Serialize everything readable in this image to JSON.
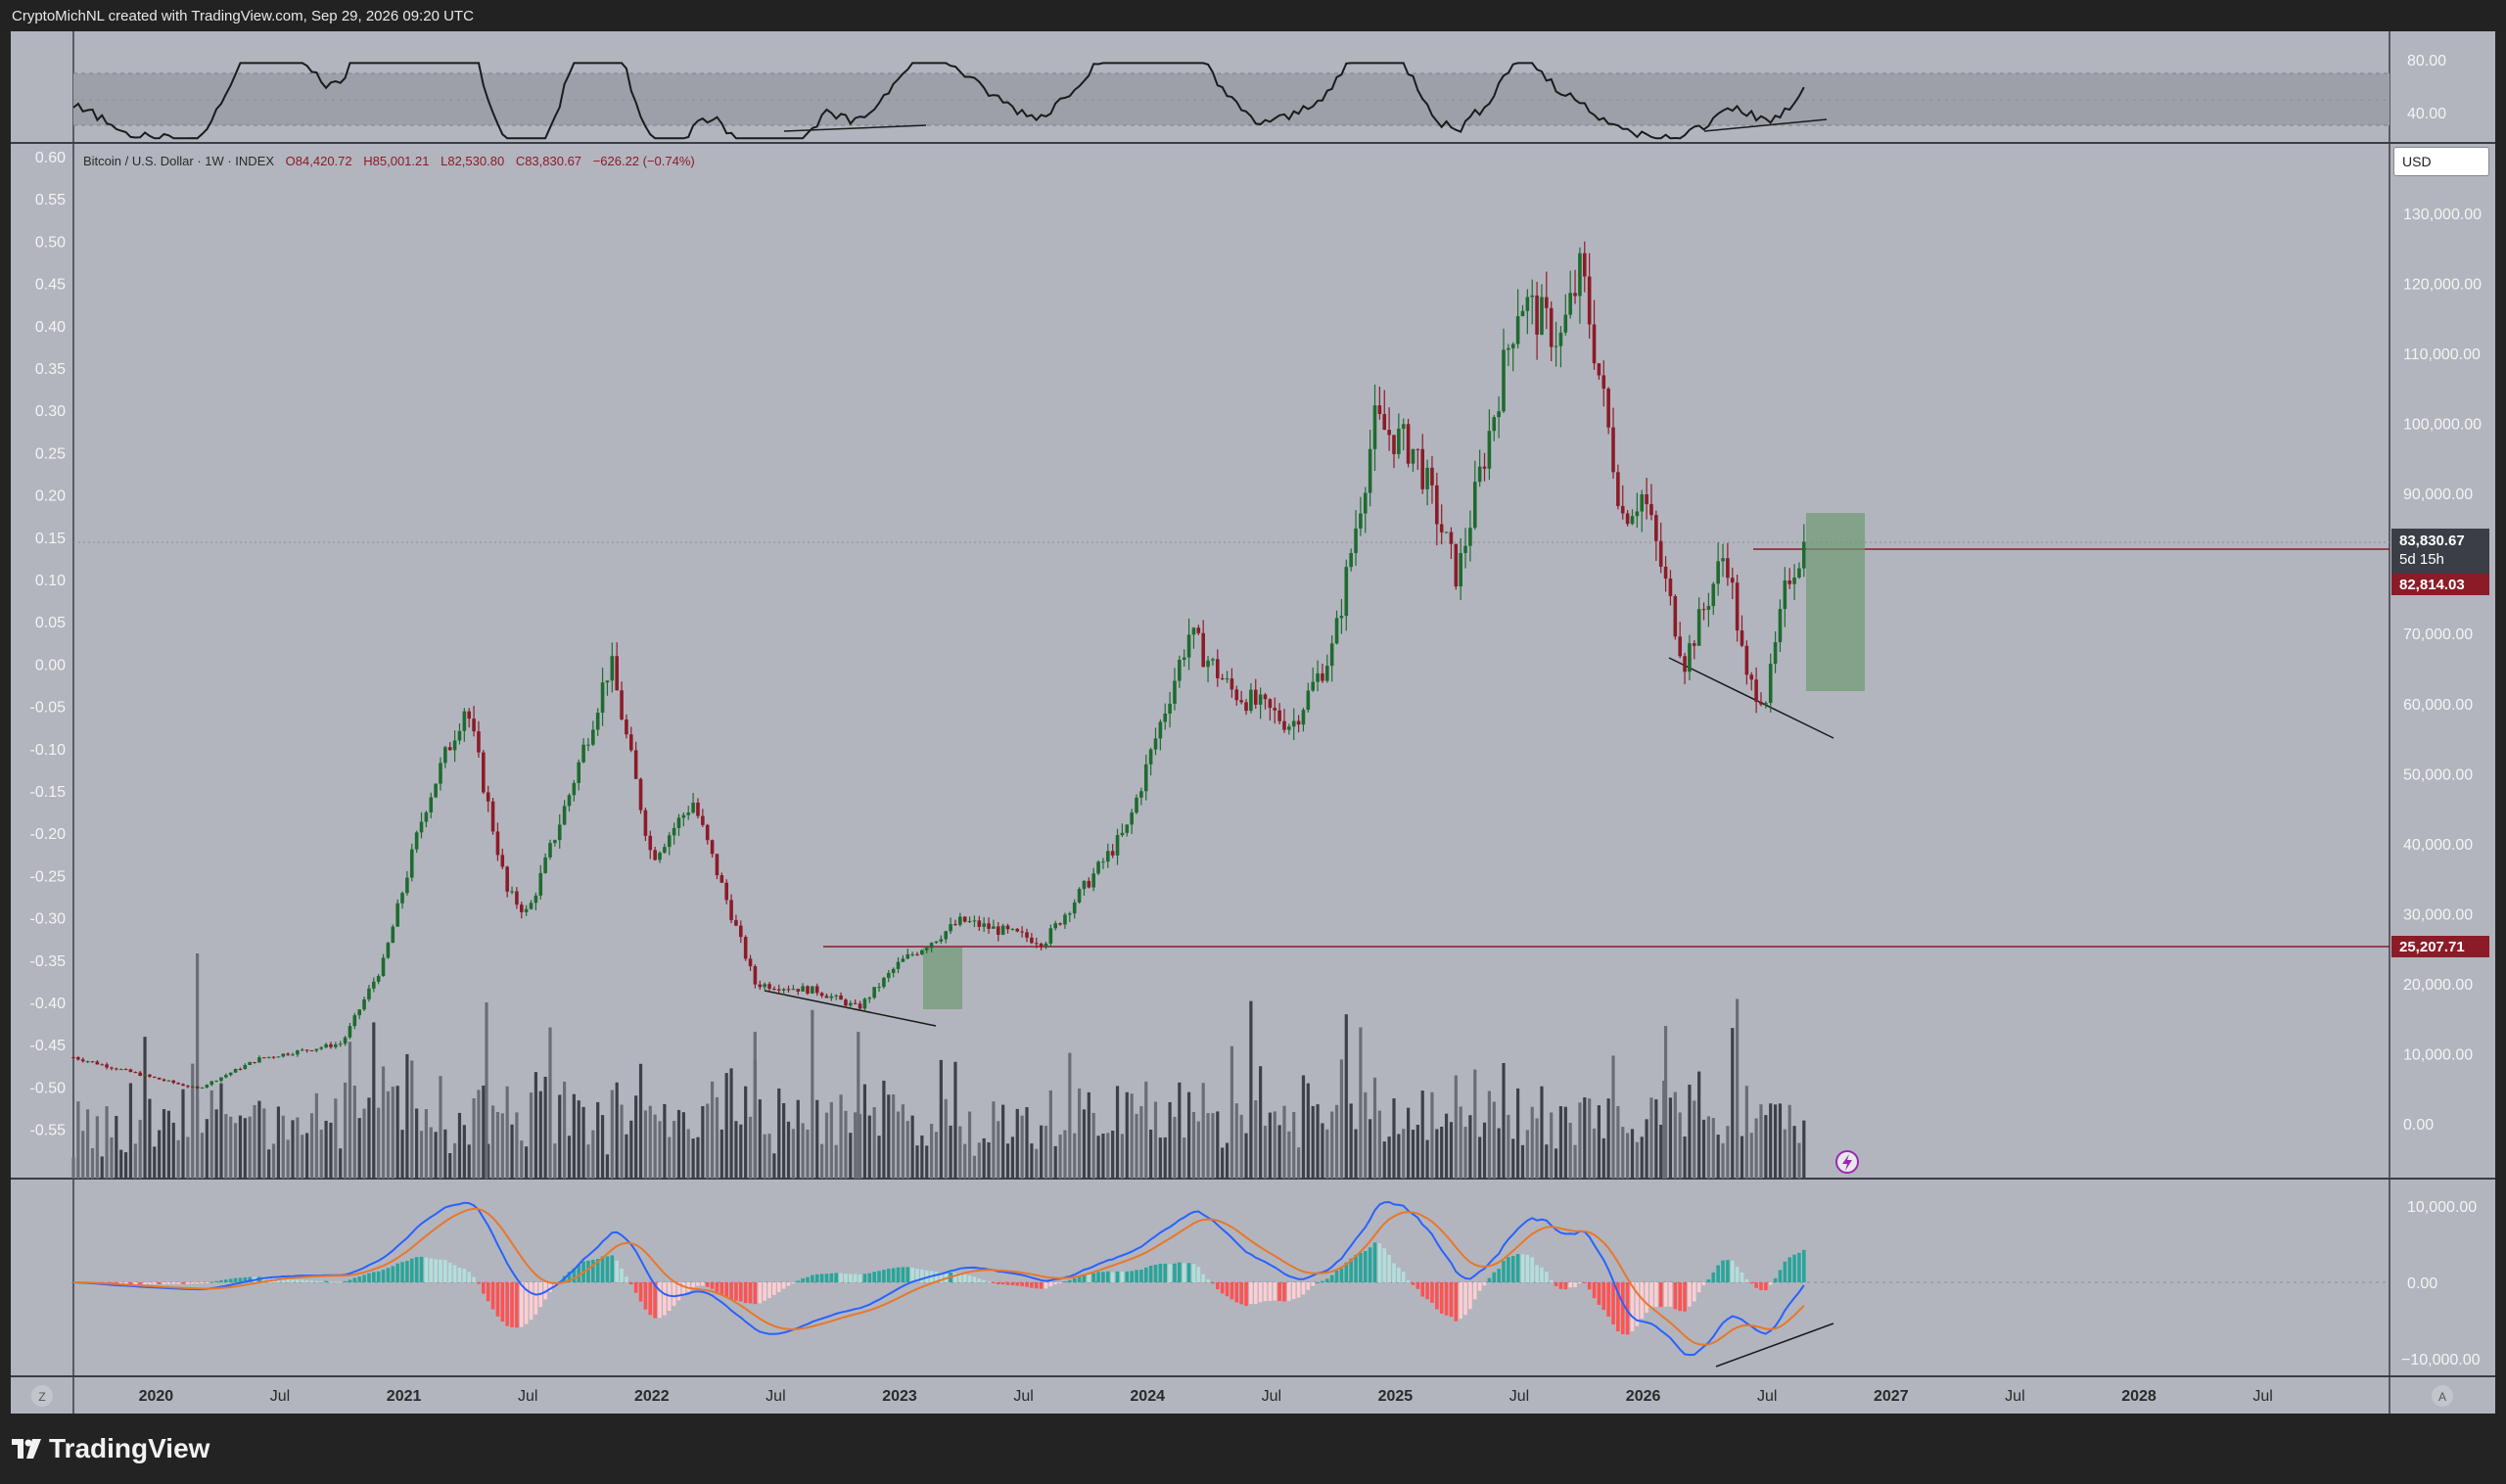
{
  "header": {
    "attribution": "CryptoMichNL created with TradingView.com, Sep 29, 2026 09:20 UTC"
  },
  "legend": {
    "symbol": "Bitcoin / U.S. Dollar · 1W · INDEX",
    "open": "O84,420.72",
    "high": "H85,001.21",
    "low": "L82,530.80",
    "close": "C83,830.67",
    "change": "−626.22 (−0.74%)"
  },
  "currency_button": "USD",
  "rsi_axis": [
    "80.00",
    "40.00"
  ],
  "price_axis": [
    "130,000.00",
    "120,000.00",
    "110,000.00",
    "100,000.00",
    "90,000.00",
    "70,000.00",
    "60,000.00",
    "50,000.00",
    "40,000.00",
    "30,000.00",
    "20,000.00",
    "10,000.00",
    "0.00"
  ],
  "left_axis": [
    "0.60",
    "0.55",
    "0.50",
    "0.45",
    "0.40",
    "0.35",
    "0.30",
    "0.25",
    "0.20",
    "0.15",
    "0.10",
    "0.05",
    "0.00",
    "-0.05",
    "-0.10",
    "-0.15",
    "-0.20",
    "-0.25",
    "-0.30",
    "-0.35",
    "-0.40",
    "-0.45",
    "-0.50",
    "-0.55"
  ],
  "macd_axis": [
    "10,000.00",
    "0.00",
    "−10,000.00"
  ],
  "price_badges": {
    "last": "83,830.67",
    "countdown": "5d 15h",
    "resistance": "82,814.03",
    "support": "25,207.71"
  },
  "time_axis": [
    "2020",
    "Jul",
    "2021",
    "Jul",
    "2022",
    "Jul",
    "2023",
    "Jul",
    "2024",
    "Jul",
    "2025",
    "Jul",
    "2026",
    "Jul",
    "2027",
    "Jul",
    "2028",
    "Jul"
  ],
  "corner_buttons": {
    "left": "Z",
    "right": "A"
  },
  "footer": {
    "brand": "TradingView"
  },
  "colors": {
    "up": "#1e6b2f",
    "down": "#8c1b28",
    "panel": "#b2b5be",
    "resistance_line": "#8c1b28",
    "zone": "#6d9a72"
  },
  "chart_data": [
    {
      "type": "candlestick",
      "title": "Bitcoin / U.S. Dollar · 1W · INDEX",
      "ylabel": "USD",
      "ylim": [
        -10000,
        135000
      ],
      "x_range": [
        "2019-09",
        "2028-12"
      ],
      "approx_path": [
        [
          "2019-09",
          9500
        ],
        [
          "2019-12",
          7200
        ],
        [
          "2020-03",
          5000
        ],
        [
          "2020-06",
          9300
        ],
        [
          "2020-10",
          11500
        ],
        [
          "2020-12",
          23000
        ],
        [
          "2021-02",
          45000
        ],
        [
          "2021-04",
          60000
        ],
        [
          "2021-06",
          33000
        ],
        [
          "2021-07",
          30000
        ],
        [
          "2021-09",
          47000
        ],
        [
          "2021-11",
          66000
        ],
        [
          "2022-01",
          38000
        ],
        [
          "2022-03",
          46000
        ],
        [
          "2022-06",
          20000
        ],
        [
          "2022-09",
          19000
        ],
        [
          "2022-11",
          16500
        ],
        [
          "2023-01",
          23000
        ],
        [
          "2023-04",
          29000
        ],
        [
          "2023-08",
          26000
        ],
        [
          "2023-10",
          34000
        ],
        [
          "2023-12",
          42000
        ],
        [
          "2024-03",
          70000
        ],
        [
          "2024-05",
          62000
        ],
        [
          "2024-08",
          57000
        ],
        [
          "2024-10",
          68000
        ],
        [
          "2024-12",
          100000
        ],
        [
          "2025-02",
          96000
        ],
        [
          "2025-04",
          78000
        ],
        [
          "2025-07",
          118000
        ],
        [
          "2025-09",
          112000
        ],
        [
          "2025-10",
          122000
        ],
        [
          "2025-12",
          87000
        ],
        [
          "2026-01",
          90000
        ],
        [
          "2026-03",
          66000
        ],
        [
          "2026-05",
          82000
        ],
        [
          "2026-06",
          63000
        ],
        [
          "2026-07",
          61000
        ],
        [
          "2026-08",
          78000
        ],
        [
          "2026-09",
          83830
        ]
      ],
      "horizontal_levels": [
        82814.03,
        25207.71
      ]
    },
    {
      "type": "line",
      "title": "RSI",
      "ylim": [
        20,
        100
      ],
      "bands": [
        40,
        80
      ]
    },
    {
      "type": "bar",
      "title": "MACD",
      "ylim": [
        -12000,
        12000
      ]
    }
  ]
}
